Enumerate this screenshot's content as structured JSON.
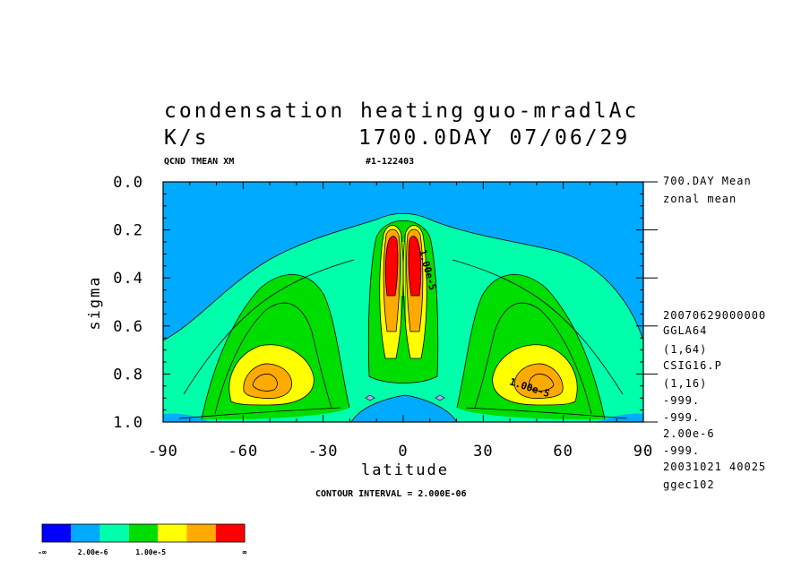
{
  "chart_data": {
    "type": "contour",
    "title_left": "condensation heating",
    "title_right": "guo-mradlAc",
    "units": "K/s",
    "date_label": "1700.0DAY 07/06/29",
    "var_label": "QCND TMEAN XM",
    "run_id": "#1-122403",
    "xlabel": "latitude",
    "ylabel": "sigma",
    "x_ticks": [
      -90,
      -60,
      -30,
      0,
      30,
      60,
      90
    ],
    "x_tick_labels": [
      "-90",
      "-60",
      "-30",
      "0",
      "30",
      "60",
      "90"
    ],
    "y_ticks": [
      0.0,
      0.2,
      0.4,
      0.6,
      0.8,
      1.0
    ],
    "y_tick_labels": [
      "0.0",
      "0.2",
      "0.4",
      "0.6",
      "0.8",
      "1.0"
    ],
    "xlim": [
      -90,
      90
    ],
    "ylim": [
      1.0,
      0.0
    ],
    "contour_interval_text": "CONTOUR INTERVAL = 2.000E-06",
    "contour_labels": [
      {
        "text": "1.00e-5",
        "lat": 47,
        "sigma": 0.87
      },
      {
        "text": "1.00e-5",
        "lat": 8,
        "sigma": 0.37
      }
    ],
    "side_notes": [
      "700.DAY Mean",
      "zonal mean",
      "20070629000000",
      "GGLA64",
      "(1,64)",
      "CSIG16.P",
      "(1,16)",
      "-999.",
      "-999.",
      "2.00e-6",
      "-999.",
      "20031021  40025",
      "ggec102"
    ],
    "colorbar": {
      "colors": [
        "#0000ff",
        "#00aaff",
        "#00ffaa",
        "#00dd00",
        "#ffff00",
        "#ffaa00",
        "#ff0000"
      ],
      "labels": [
        "-∞",
        "2.00e-6",
        "1.00e-5",
        "∞"
      ]
    }
  }
}
